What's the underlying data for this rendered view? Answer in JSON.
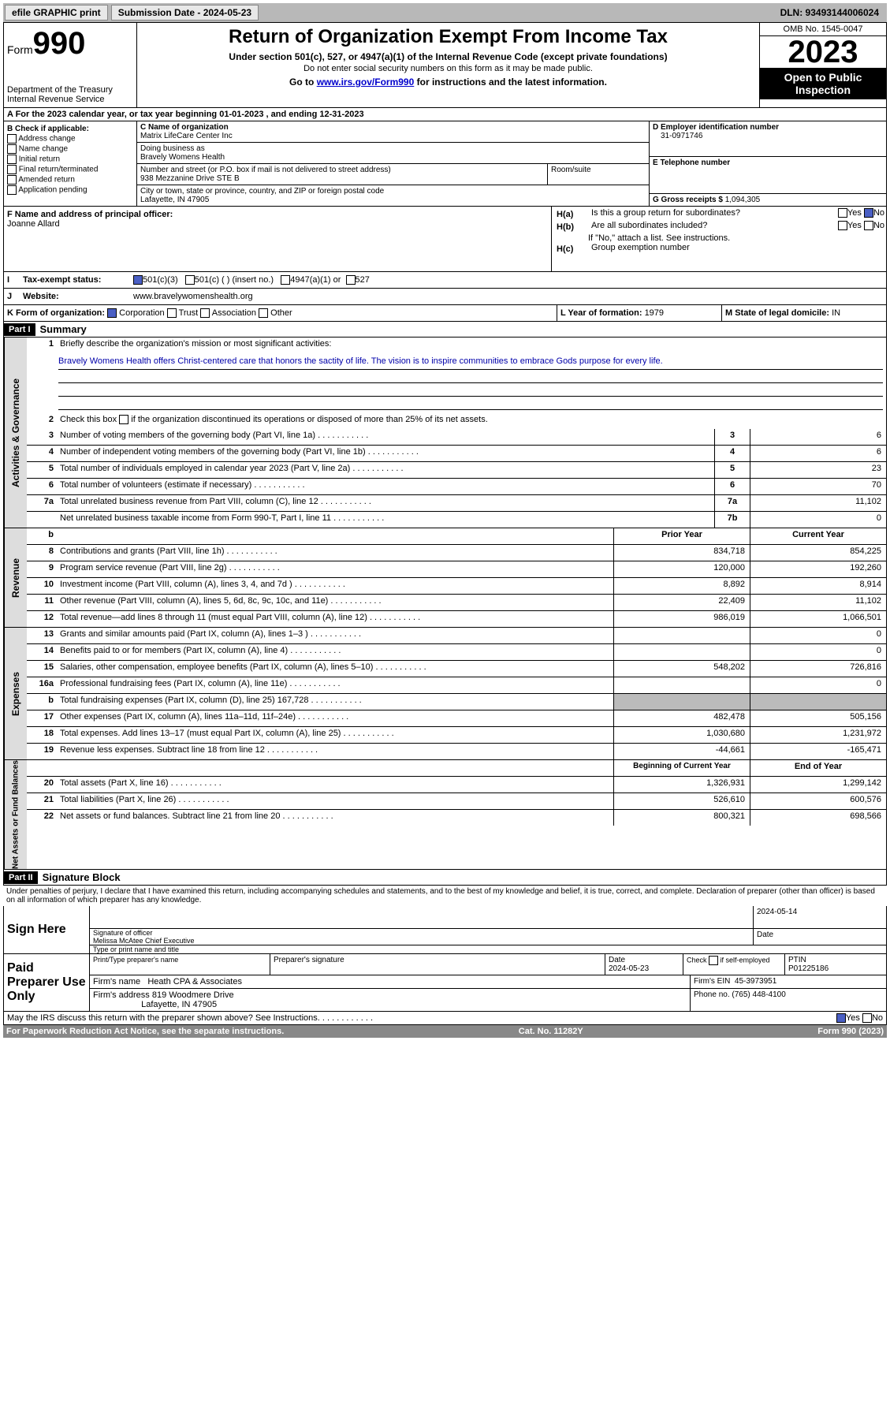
{
  "topbar": {
    "efile_label": "efile GRAPHIC print",
    "submission_label": "Submission Date - 2024-05-23",
    "dln_label": "DLN: 93493144006024"
  },
  "header": {
    "form_label": "Form",
    "form_number": "990",
    "dept": "Department of the Treasury\nInternal Revenue Service",
    "title": "Return of Organization Exempt From Income Tax",
    "subtitle": "Under section 501(c), 527, or 4947(a)(1) of the Internal Revenue Code (except private foundations)",
    "warning": "Do not enter social security numbers on this form as it may be made public.",
    "goto": "Go to ",
    "goto_link": "www.irs.gov/Form990",
    "goto_suffix": " for instructions and the latest information.",
    "omb": "OMB No. 1545-0047",
    "year": "2023",
    "open_public": "Open to Public Inspection"
  },
  "cal_year": {
    "prefix": "A For the 2023 calendar year, or tax year beginning ",
    "begin": "01-01-2023",
    "mid": " , and ending ",
    "end": "12-31-2023"
  },
  "section_b": {
    "b_label": "B Check if applicable:",
    "checks": [
      "Address change",
      "Name change",
      "Initial return",
      "Final return/terminated",
      "Amended return",
      "Application pending"
    ],
    "c_label": "C Name of organization",
    "org_name": "Matrix LifeCare Center Inc",
    "dba_label": "Doing business as",
    "dba": "Bravely Womens Health",
    "street_label": "Number and street (or P.O. box if mail is not delivered to street address)",
    "street": "938 Mezzanine Drive STE B",
    "room_label": "Room/suite",
    "city_label": "City or town, state or province, country, and ZIP or foreign postal code",
    "city": "Lafayette, IN  47905",
    "d_label": "D Employer identification number",
    "ein": "31-0971746",
    "e_label": "E Telephone number",
    "g_label": "G Gross receipts $ ",
    "g_value": "1,094,305",
    "f_label": "F  Name and address of principal officer:",
    "officer": "Joanne Allard",
    "ha_label": "Is this a group return for subordinates?",
    "hb_label": "Are all subordinates included?",
    "hb_note": "If \"No,\" attach a list. See instructions.",
    "hc_label": "Group exemption number",
    "yes": "Yes",
    "no": "No"
  },
  "row_i": {
    "label": "Tax-exempt status:",
    "opt1": "501(c)(3)",
    "opt2": "501(c) (  ) (insert no.)",
    "opt3": "4947(a)(1) or",
    "opt4": "527"
  },
  "row_j": {
    "label": "Website:",
    "value": "www.bravelywomenshealth.org"
  },
  "row_k": {
    "label": "K Form of organization:",
    "opt1": "Corporation",
    "opt2": "Trust",
    "opt3": "Association",
    "opt4": "Other",
    "l_label": "L Year of formation: ",
    "l_value": "1979",
    "m_label": "M State of legal domicile: ",
    "m_value": "IN"
  },
  "part1": {
    "header": "Part I",
    "title": "Summary",
    "line1_label": "Briefly describe the organization's mission or most significant activities:",
    "mission": "Bravely Womens Health offers Christ-centered care that honors the sactity of life. The vision is to inspire communities to embrace Gods purpose for every life.",
    "line2": "Check this box      if the organization discontinued its operations or disposed of more than 25% of its net assets.",
    "sides": {
      "gov": "Activities & Governance",
      "rev": "Revenue",
      "exp": "Expenses",
      "net": "Net Assets or Fund Balances"
    },
    "gov_lines": [
      {
        "n": "3",
        "t": "Number of voting members of the governing body (Part VI, line 1a)",
        "box": "3",
        "v": "6"
      },
      {
        "n": "4",
        "t": "Number of independent voting members of the governing body (Part VI, line 1b)",
        "box": "4",
        "v": "6"
      },
      {
        "n": "5",
        "t": "Total number of individuals employed in calendar year 2023 (Part V, line 2a)",
        "box": "5",
        "v": "23"
      },
      {
        "n": "6",
        "t": "Total number of volunteers (estimate if necessary)",
        "box": "6",
        "v": "70"
      },
      {
        "n": "7a",
        "t": "Total unrelated business revenue from Part VIII, column (C), line 12",
        "box": "7a",
        "v": "11,102"
      },
      {
        "n": "",
        "t": "Net unrelated business taxable income from Form 990-T, Part I, line 11",
        "box": "7b",
        "v": "0"
      }
    ],
    "col_hdr": {
      "b": "b",
      "prior": "Prior Year",
      "current": "Current Year"
    },
    "rev_lines": [
      {
        "n": "8",
        "t": "Contributions and grants (Part VIII, line 1h)",
        "p": "834,718",
        "c": "854,225"
      },
      {
        "n": "9",
        "t": "Program service revenue (Part VIII, line 2g)",
        "p": "120,000",
        "c": "192,260"
      },
      {
        "n": "10",
        "t": "Investment income (Part VIII, column (A), lines 3, 4, and 7d )",
        "p": "8,892",
        "c": "8,914"
      },
      {
        "n": "11",
        "t": "Other revenue (Part VIII, column (A), lines 5, 6d, 8c, 9c, 10c, and 11e)",
        "p": "22,409",
        "c": "11,102"
      },
      {
        "n": "12",
        "t": "Total revenue—add lines 8 through 11 (must equal Part VIII, column (A), line 12)",
        "p": "986,019",
        "c": "1,066,501"
      }
    ],
    "exp_lines": [
      {
        "n": "13",
        "t": "Grants and similar amounts paid (Part IX, column (A), lines 1–3 )",
        "p": "",
        "c": "0"
      },
      {
        "n": "14",
        "t": "Benefits paid to or for members (Part IX, column (A), line 4)",
        "p": "",
        "c": "0"
      },
      {
        "n": "15",
        "t": "Salaries, other compensation, employee benefits (Part IX, column (A), lines 5–10)",
        "p": "548,202",
        "c": "726,816"
      },
      {
        "n": "16a",
        "t": "Professional fundraising fees (Part IX, column (A), line 11e)",
        "p": "",
        "c": "0"
      },
      {
        "n": "b",
        "t": "Total fundraising expenses (Part IX, column (D), line 25) 167,728",
        "p": "SHADE",
        "c": "SHADE"
      },
      {
        "n": "17",
        "t": "Other expenses (Part IX, column (A), lines 11a–11d, 11f–24e)",
        "p": "482,478",
        "c": "505,156"
      },
      {
        "n": "18",
        "t": "Total expenses. Add lines 13–17 (must equal Part IX, column (A), line 25)",
        "p": "1,030,680",
        "c": "1,231,972"
      },
      {
        "n": "19",
        "t": "Revenue less expenses. Subtract line 18 from line 12",
        "p": "-44,661",
        "c": "-165,471"
      }
    ],
    "net_hdr": {
      "begin": "Beginning of Current Year",
      "end": "End of Year"
    },
    "net_lines": [
      {
        "n": "20",
        "t": "Total assets (Part X, line 16)",
        "p": "1,326,931",
        "c": "1,299,142"
      },
      {
        "n": "21",
        "t": "Total liabilities (Part X, line 26)",
        "p": "526,610",
        "c": "600,576"
      },
      {
        "n": "22",
        "t": "Net assets or fund balances. Subtract line 21 from line 20",
        "p": "800,321",
        "c": "698,566"
      }
    ]
  },
  "part2": {
    "header": "Part II",
    "title": "Signature Block",
    "perjury": "Under penalties of perjury, I declare that I have examined this return, including accompanying schedules and statements, and to the best of my knowledge and belief, it is true, correct, and complete. Declaration of preparer (other than officer) is based on all information of which preparer has any knowledge.",
    "sign_here": "Sign Here",
    "sig_officer_label": "Signature of officer",
    "officer_name": "Melissa McAtee Chief Executive",
    "type_label": "Type or print name and title",
    "date_label": "Date",
    "sig_date": "2024-05-14",
    "paid": "Paid Preparer Use Only",
    "prep_name_label": "Print/Type preparer's name",
    "prep_sig_label": "Preparer's signature",
    "prep_date": "2024-05-23",
    "check_if": "Check       if self-employed",
    "ptin_label": "PTIN",
    "ptin": "P01225186",
    "firm_name_label": "Firm's name",
    "firm_name": "Heath CPA & Associates",
    "firm_ein_label": "Firm's EIN",
    "firm_ein": "45-3973951",
    "firm_addr_label": "Firm's address",
    "firm_addr": "819 Woodmere Drive",
    "firm_city": "Lafayette, IN  47905",
    "phone_label": "Phone no.",
    "phone": "(765) 448-4100",
    "discuss": "May the IRS discuss this return with the preparer shown above? See Instructions."
  },
  "footer": {
    "paperwork": "For Paperwork Reduction Act Notice, see the separate instructions.",
    "cat": "Cat. No. 11282Y",
    "form": "Form 990 (2023)"
  }
}
